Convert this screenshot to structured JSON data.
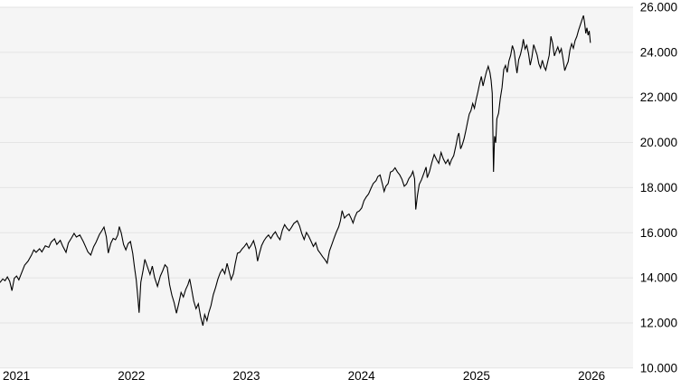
{
  "colors": {
    "page_background": "#ffffff",
    "plot_background": "#f5f5f5",
    "grid_line": "#e4e4e4",
    "series_line": "#000000",
    "tick_text": "#000000"
  },
  "chart_data": {
    "type": "line",
    "title": "",
    "xlabel": "",
    "ylabel": "",
    "legend": "none",
    "grid": "horizontal",
    "y_axis_side": "right",
    "series_name": "index-price",
    "xlim": [
      2020.976,
      2026.479
    ],
    "ylim": [
      10000,
      26000
    ],
    "x_ticks": [
      2021,
      2022,
      2023,
      2024,
      2025,
      2026
    ],
    "x_tick_labels": [
      "2021",
      "2022",
      "2023",
      "2024",
      "2025",
      "2026"
    ],
    "y_ticks": [
      26000,
      24000,
      22000,
      20000,
      18000,
      16000,
      14000,
      12000,
      10000
    ],
    "y_tick_labels": [
      "26.000",
      "24.000",
      "22.000",
      "20.000",
      "18.000",
      "16.000",
      "14.000",
      "12.000",
      "10.000"
    ],
    "points": [
      [
        2020.976,
        13790
      ],
      [
        2021.0,
        13950
      ],
      [
        2021.02,
        13870
      ],
      [
        2021.04,
        14040
      ],
      [
        2021.06,
        13850
      ],
      [
        2021.08,
        13430
      ],
      [
        2021.1,
        13980
      ],
      [
        2021.12,
        14080
      ],
      [
        2021.14,
        13910
      ],
      [
        2021.16,
        14170
      ],
      [
        2021.19,
        14560
      ],
      [
        2021.22,
        14740
      ],
      [
        2021.25,
        15010
      ],
      [
        2021.27,
        15240
      ],
      [
        2021.29,
        15130
      ],
      [
        2021.32,
        15290
      ],
      [
        2021.34,
        15150
      ],
      [
        2021.37,
        15420
      ],
      [
        2021.4,
        15350
      ],
      [
        2021.42,
        15580
      ],
      [
        2021.45,
        15730
      ],
      [
        2021.47,
        15480
      ],
      [
        2021.5,
        15660
      ],
      [
        2021.52,
        15420
      ],
      [
        2021.55,
        15130
      ],
      [
        2021.57,
        15540
      ],
      [
        2021.6,
        15790
      ],
      [
        2021.62,
        15970
      ],
      [
        2021.64,
        15810
      ],
      [
        2021.67,
        15900
      ],
      [
        2021.7,
        15610
      ],
      [
        2021.72,
        15380
      ],
      [
        2021.74,
        15150
      ],
      [
        2021.765,
        15010
      ],
      [
        2021.79,
        15380
      ],
      [
        2021.81,
        15570
      ],
      [
        2021.84,
        15920
      ],
      [
        2021.86,
        16080
      ],
      [
        2021.88,
        16250
      ],
      [
        2021.9,
        15830
      ],
      [
        2021.917,
        15100
      ],
      [
        2021.94,
        15540
      ],
      [
        2021.96,
        15750
      ],
      [
        2021.98,
        15690
      ],
      [
        2022.0,
        15900
      ],
      [
        2022.013,
        16270
      ],
      [
        2022.03,
        15990
      ],
      [
        2022.05,
        15480
      ],
      [
        2022.07,
        15240
      ],
      [
        2022.09,
        15520
      ],
      [
        2022.11,
        15610
      ],
      [
        2022.13,
        15080
      ],
      [
        2022.145,
        14470
      ],
      [
        2022.16,
        13920
      ],
      [
        2022.175,
        13090
      ],
      [
        2022.185,
        12450
      ],
      [
        2022.2,
        13800
      ],
      [
        2022.22,
        14340
      ],
      [
        2022.235,
        14820
      ],
      [
        2022.26,
        14450
      ],
      [
        2022.28,
        14150
      ],
      [
        2022.3,
        14520
      ],
      [
        2022.32,
        14010
      ],
      [
        2022.345,
        13620
      ],
      [
        2022.37,
        14080
      ],
      [
        2022.39,
        14310
      ],
      [
        2022.41,
        14580
      ],
      [
        2022.43,
        14460
      ],
      [
        2022.45,
        13700
      ],
      [
        2022.47,
        13230
      ],
      [
        2022.49,
        12890
      ],
      [
        2022.51,
        12430
      ],
      [
        2022.53,
        12870
      ],
      [
        2022.55,
        13350
      ],
      [
        2022.57,
        13150
      ],
      [
        2022.59,
        13480
      ],
      [
        2022.61,
        13700
      ],
      [
        2022.625,
        13950
      ],
      [
        2022.64,
        13540
      ],
      [
        2022.66,
        12970
      ],
      [
        2022.68,
        12630
      ],
      [
        2022.7,
        12850
      ],
      [
        2022.72,
        12270
      ],
      [
        2022.74,
        11880
      ],
      [
        2022.755,
        12370
      ],
      [
        2022.775,
        12100
      ],
      [
        2022.79,
        12440
      ],
      [
        2022.81,
        12770
      ],
      [
        2022.83,
        13250
      ],
      [
        2022.85,
        13570
      ],
      [
        2022.87,
        13940
      ],
      [
        2022.89,
        14220
      ],
      [
        2022.91,
        14390
      ],
      [
        2022.93,
        14180
      ],
      [
        2022.95,
        14640
      ],
      [
        2022.97,
        14230
      ],
      [
        2022.985,
        13920
      ],
      [
        2023.005,
        14180
      ],
      [
        2023.02,
        14610
      ],
      [
        2023.04,
        15090
      ],
      [
        2023.06,
        15130
      ],
      [
        2023.08,
        15280
      ],
      [
        2023.1,
        15390
      ],
      [
        2023.12,
        15530
      ],
      [
        2023.14,
        15300
      ],
      [
        2023.16,
        15450
      ],
      [
        2023.18,
        15650
      ],
      [
        2023.2,
        15280
      ],
      [
        2023.215,
        14740
      ],
      [
        2023.23,
        15060
      ],
      [
        2023.25,
        15430
      ],
      [
        2023.27,
        15640
      ],
      [
        2023.29,
        15790
      ],
      [
        2023.31,
        15900
      ],
      [
        2023.33,
        15740
      ],
      [
        2023.35,
        15920
      ],
      [
        2023.37,
        16040
      ],
      [
        2023.39,
        15830
      ],
      [
        2023.41,
        15690
      ],
      [
        2023.43,
        16110
      ],
      [
        2023.45,
        16360
      ],
      [
        2023.47,
        16200
      ],
      [
        2023.49,
        16090
      ],
      [
        2023.51,
        16240
      ],
      [
        2023.53,
        16410
      ],
      [
        2023.56,
        16530
      ],
      [
        2023.58,
        16300
      ],
      [
        2023.6,
        15950
      ],
      [
        2023.62,
        15700
      ],
      [
        2023.64,
        16010
      ],
      [
        2023.66,
        15840
      ],
      [
        2023.68,
        15620
      ],
      [
        2023.7,
        15390
      ],
      [
        2023.72,
        15560
      ],
      [
        2023.74,
        15230
      ],
      [
        2023.76,
        15090
      ],
      [
        2023.78,
        14940
      ],
      [
        2023.8,
        14810
      ],
      [
        2023.82,
        14650
      ],
      [
        2023.84,
        15190
      ],
      [
        2023.86,
        15470
      ],
      [
        2023.88,
        15760
      ],
      [
        2023.9,
        16030
      ],
      [
        2023.92,
        16260
      ],
      [
        2023.935,
        16530
      ],
      [
        2023.95,
        16980
      ],
      [
        2023.97,
        16650
      ],
      [
        2023.99,
        16760
      ],
      [
        2024.01,
        16830
      ],
      [
        2024.03,
        16620
      ],
      [
        2024.045,
        16430
      ],
      [
        2024.06,
        16680
      ],
      [
        2024.08,
        16910
      ],
      [
        2024.1,
        16970
      ],
      [
        2024.12,
        17100
      ],
      [
        2024.14,
        17420
      ],
      [
        2024.16,
        17590
      ],
      [
        2024.18,
        17720
      ],
      [
        2024.2,
        17960
      ],
      [
        2024.22,
        18180
      ],
      [
        2024.245,
        18310
      ],
      [
        2024.26,
        18490
      ],
      [
        2024.28,
        18560
      ],
      [
        2024.3,
        18160
      ],
      [
        2024.315,
        17830
      ],
      [
        2024.33,
        18060
      ],
      [
        2024.35,
        18180
      ],
      [
        2024.37,
        18690
      ],
      [
        2024.39,
        18740
      ],
      [
        2024.41,
        18880
      ],
      [
        2024.43,
        18700
      ],
      [
        2024.45,
        18570
      ],
      [
        2024.47,
        18370
      ],
      [
        2024.49,
        18060
      ],
      [
        2024.51,
        18160
      ],
      [
        2024.53,
        18400
      ],
      [
        2024.55,
        18540
      ],
      [
        2024.565,
        18720
      ],
      [
        2024.58,
        18390
      ],
      [
        2024.59,
        17030
      ],
      [
        2024.605,
        17660
      ],
      [
        2024.62,
        18140
      ],
      [
        2024.64,
        18350
      ],
      [
        2024.66,
        18630
      ],
      [
        2024.68,
        18910
      ],
      [
        2024.69,
        18440
      ],
      [
        2024.71,
        18720
      ],
      [
        2024.73,
        19120
      ],
      [
        2024.75,
        19470
      ],
      [
        2024.77,
        19250
      ],
      [
        2024.79,
        19080
      ],
      [
        2024.81,
        19560
      ],
      [
        2024.83,
        19270
      ],
      [
        2024.85,
        19070
      ],
      [
        2024.87,
        19240
      ],
      [
        2024.885,
        19010
      ],
      [
        2024.9,
        19230
      ],
      [
        2024.92,
        19420
      ],
      [
        2024.94,
        19880
      ],
      [
        2024.955,
        20290
      ],
      [
        2024.965,
        20420
      ],
      [
        2024.98,
        19720
      ],
      [
        2024.995,
        19910
      ],
      [
        2025.01,
        20170
      ],
      [
        2025.025,
        20520
      ],
      [
        2025.04,
        20900
      ],
      [
        2025.055,
        21260
      ],
      [
        2025.07,
        21420
      ],
      [
        2025.085,
        21730
      ],
      [
        2025.1,
        21520
      ],
      [
        2025.115,
        21910
      ],
      [
        2025.13,
        22240
      ],
      [
        2025.145,
        22610
      ],
      [
        2025.16,
        22930
      ],
      [
        2025.175,
        22510
      ],
      [
        2025.19,
        22840
      ],
      [
        2025.205,
        23150
      ],
      [
        2025.22,
        23380
      ],
      [
        2025.235,
        23100
      ],
      [
        2025.245,
        22760
      ],
      [
        2025.255,
        22180
      ],
      [
        2025.266,
        18700
      ],
      [
        2025.275,
        20280
      ],
      [
        2025.285,
        19990
      ],
      [
        2025.295,
        21050
      ],
      [
        2025.31,
        21300
      ],
      [
        2025.325,
        21960
      ],
      [
        2025.34,
        22440
      ],
      [
        2025.355,
        23240
      ],
      [
        2025.37,
        23420
      ],
      [
        2025.385,
        23110
      ],
      [
        2025.4,
        23620
      ],
      [
        2025.415,
        23870
      ],
      [
        2025.43,
        24300
      ],
      [
        2025.445,
        24060
      ],
      [
        2025.46,
        23440
      ],
      [
        2025.47,
        23080
      ],
      [
        2025.485,
        23680
      ],
      [
        2025.5,
        23900
      ],
      [
        2025.515,
        24240
      ],
      [
        2025.525,
        24580
      ],
      [
        2025.54,
        24150
      ],
      [
        2025.555,
        24310
      ],
      [
        2025.57,
        23950
      ],
      [
        2025.585,
        23430
      ],
      [
        2025.6,
        23790
      ],
      [
        2025.615,
        24340
      ],
      [
        2025.63,
        24110
      ],
      [
        2025.645,
        23880
      ],
      [
        2025.66,
        23490
      ],
      [
        2025.675,
        23300
      ],
      [
        2025.69,
        23650
      ],
      [
        2025.705,
        23370
      ],
      [
        2025.72,
        23210
      ],
      [
        2025.735,
        23540
      ],
      [
        2025.75,
        23870
      ],
      [
        2025.765,
        24710
      ],
      [
        2025.78,
        24390
      ],
      [
        2025.795,
        23840
      ],
      [
        2025.81,
        24050
      ],
      [
        2025.825,
        24240
      ],
      [
        2025.84,
        23980
      ],
      [
        2025.855,
        24160
      ],
      [
        2025.87,
        23720
      ],
      [
        2025.885,
        23190
      ],
      [
        2025.9,
        23400
      ],
      [
        2025.915,
        23590
      ],
      [
        2025.93,
        24100
      ],
      [
        2025.945,
        24380
      ],
      [
        2025.96,
        24180
      ],
      [
        2025.975,
        24520
      ],
      [
        2025.99,
        24700
      ],
      [
        2026.005,
        24980
      ],
      [
        2026.02,
        25210
      ],
      [
        2026.035,
        25440
      ],
      [
        2026.048,
        25630
      ],
      [
        2026.058,
        25300
      ],
      [
        2026.068,
        24840
      ],
      [
        2026.078,
        25090
      ],
      [
        2026.088,
        24760
      ],
      [
        2026.098,
        24950
      ],
      [
        2026.108,
        24420
      ]
    ]
  }
}
